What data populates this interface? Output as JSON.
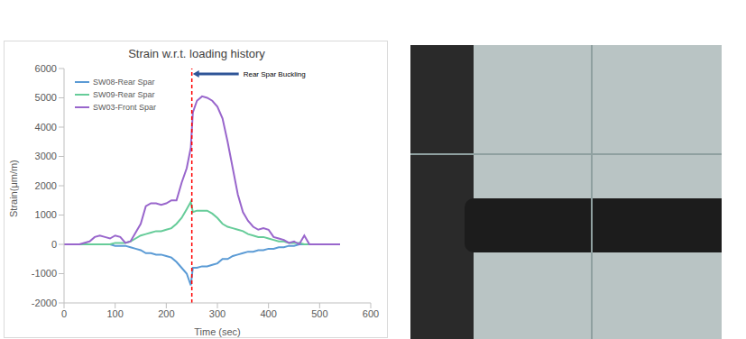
{
  "chart_data": {
    "type": "line",
    "title": "Strain w.r.t. loading history",
    "x_label": "Time (sec)",
    "y_label": "Strain(μm/m)",
    "xlim": [
      0,
      600
    ],
    "xticks": [
      0,
      100,
      200,
      300,
      400,
      500,
      600
    ],
    "ylim": [
      -2000,
      6000
    ],
    "yticks": [
      -2000,
      -1000,
      0,
      1000,
      2000,
      3000,
      4000,
      5000,
      6000
    ],
    "grid": false,
    "legend": "upper left",
    "annotations": [
      {
        "text": "Rear Spar Buckling",
        "x": 250
      }
    ],
    "x": [
      0,
      30,
      50,
      60,
      70,
      80,
      90,
      100,
      110,
      120,
      130,
      140,
      150,
      160,
      170,
      180,
      190,
      200,
      210,
      220,
      230,
      240,
      248,
      252,
      260,
      270,
      280,
      290,
      300,
      310,
      320,
      330,
      340,
      350,
      360,
      370,
      380,
      390,
      400,
      410,
      420,
      430,
      440,
      450,
      460,
      470,
      480,
      500,
      540
    ],
    "series": [
      {
        "name": "SW08-Rear Spar",
        "color": "#5b9bd5",
        "values": [
          0,
          0,
          0,
          0,
          0,
          0,
          0,
          -50,
          -50,
          -50,
          -100,
          -150,
          -200,
          -300,
          -300,
          -350,
          -350,
          -400,
          -450,
          -600,
          -800,
          -1000,
          -1400,
          -800,
          -800,
          -750,
          -750,
          -700,
          -650,
          -500,
          -500,
          -400,
          -350,
          -300,
          -250,
          -250,
          -200,
          -200,
          -150,
          -150,
          -100,
          -100,
          -50,
          -50,
          0,
          0,
          0,
          0,
          0
        ]
      },
      {
        "name": "SW09-Rear Spar",
        "color": "#66cc99",
        "values": [
          0,
          0,
          0,
          0,
          0,
          0,
          0,
          50,
          50,
          50,
          100,
          200,
          300,
          350,
          400,
          450,
          450,
          500,
          550,
          700,
          900,
          1200,
          1450,
          1100,
          1150,
          1150,
          1150,
          1050,
          900,
          700,
          600,
          550,
          500,
          450,
          350,
          300,
          250,
          250,
          200,
          150,
          100,
          100,
          50,
          50,
          50,
          0,
          0,
          0,
          0
        ]
      },
      {
        "name": "SW03-Front Spar",
        "color": "#9966cc",
        "values": [
          0,
          0,
          100,
          250,
          300,
          250,
          200,
          300,
          250,
          50,
          100,
          400,
          700,
          1300,
          1400,
          1400,
          1350,
          1400,
          1500,
          1500,
          2100,
          2600,
          3300,
          4500,
          4900,
          5050,
          5000,
          4900,
          4700,
          4300,
          3500,
          2600,
          1700,
          1100,
          800,
          600,
          500,
          550,
          500,
          250,
          200,
          150,
          50,
          100,
          0,
          300,
          0,
          0,
          0
        ]
      }
    ]
  }
}
